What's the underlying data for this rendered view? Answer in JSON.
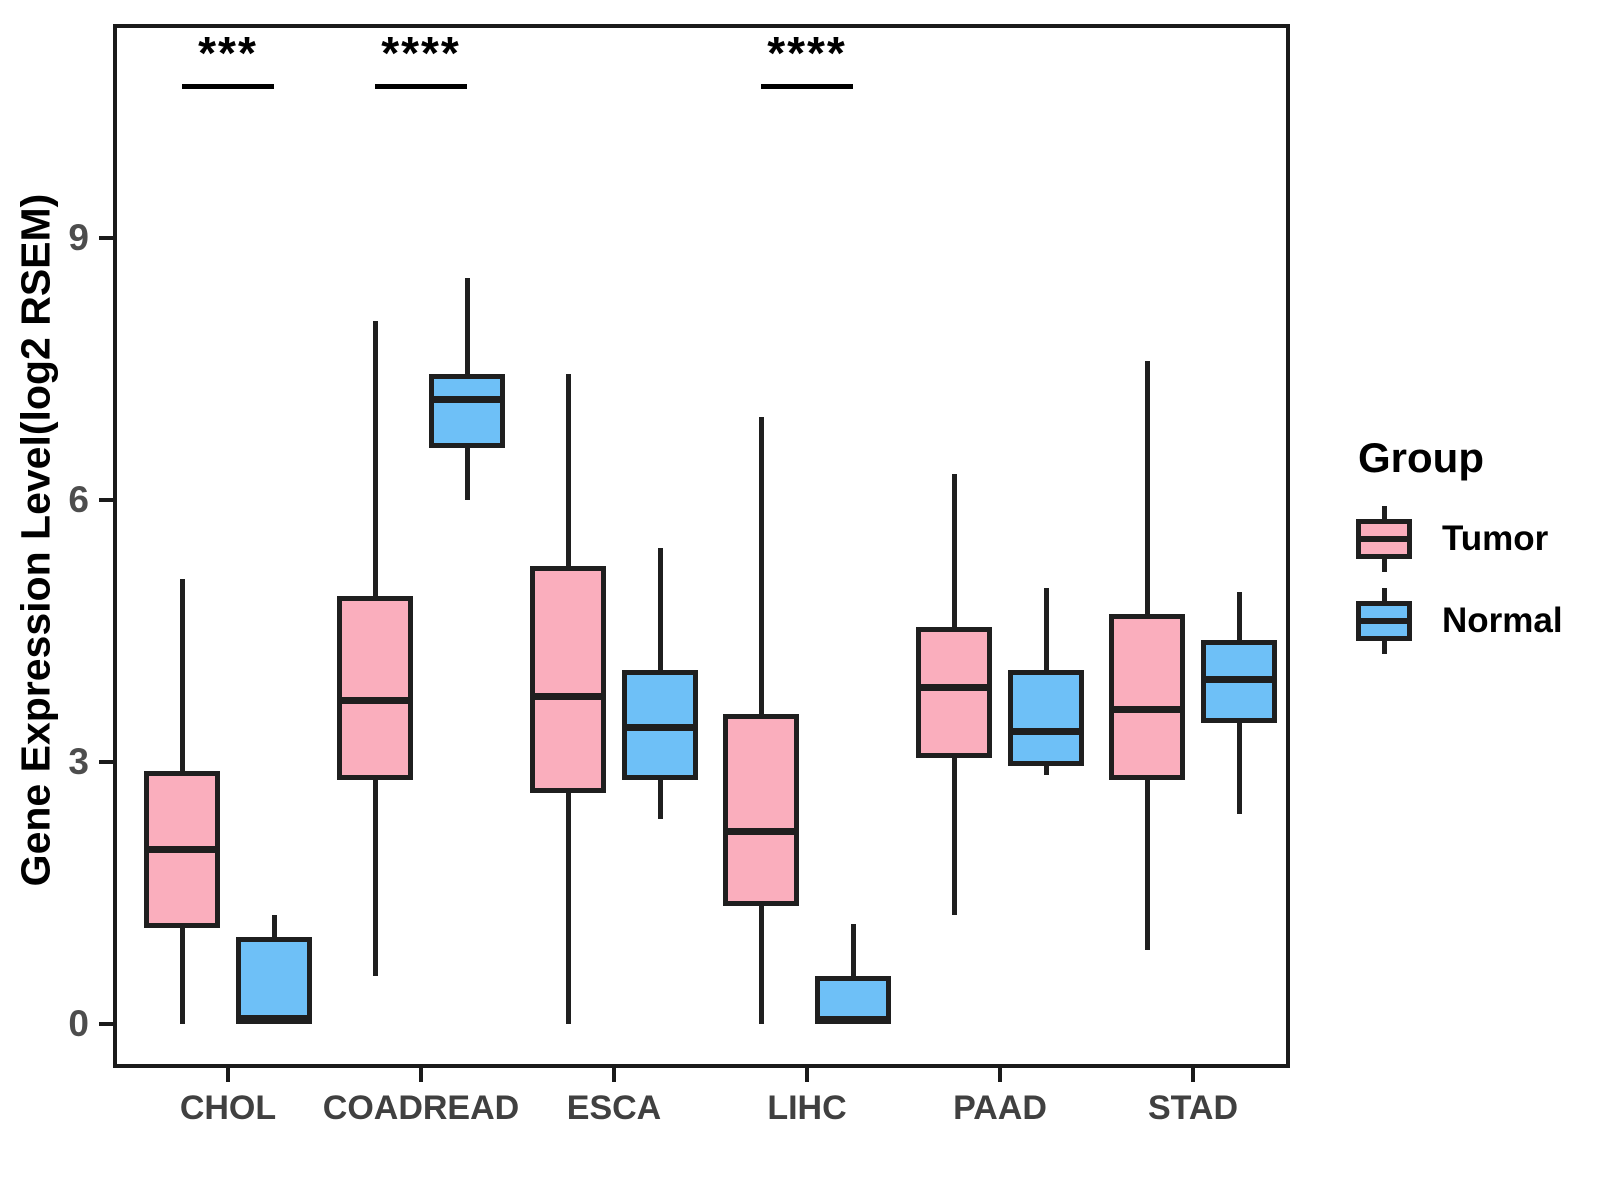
{
  "chart_data": {
    "type": "boxplot",
    "title": "",
    "xlabel": "",
    "ylabel": "Gene Expression Level(log2 RSEM)",
    "categories": [
      "CHOL",
      "COADREAD",
      "ESCA",
      "LIHC",
      "PAAD",
      "STAD"
    ],
    "y_ticks": [
      0,
      3,
      6,
      9
    ],
    "ylim": [
      -0.5,
      11.5
    ],
    "grid": false,
    "legend_position": "right",
    "legend": {
      "title": "Group"
    },
    "colors": {
      "tumor_fill": "#FAAEBD",
      "normal_fill": "#6EC0F7",
      "box_border": "#1f1f1f",
      "axis_frame": "#1a1a1a",
      "tick_text": "#4d4d4d"
    },
    "series": [
      {
        "name": "Tumor",
        "color": "#FAAEBD",
        "boxes": [
          {
            "category": "CHOL",
            "min": 0,
            "q1": 1.1,
            "median": 2.0,
            "q3": 2.9,
            "max": 5.1
          },
          {
            "category": "COADREAD",
            "min": 0.55,
            "q1": 2.8,
            "median": 3.7,
            "q3": 4.9,
            "max": 8.05
          },
          {
            "category": "ESCA",
            "min": 0,
            "q1": 2.65,
            "median": 3.75,
            "q3": 5.25,
            "max": 7.45
          },
          {
            "category": "LIHC",
            "min": 0,
            "q1": 1.35,
            "median": 2.2,
            "q3": 3.55,
            "max": 6.95
          },
          {
            "category": "PAAD",
            "min": 1.25,
            "q1": 3.05,
            "median": 3.85,
            "q3": 4.55,
            "max": 6.3
          },
          {
            "category": "STAD",
            "min": 0.85,
            "q1": 2.8,
            "median": 3.6,
            "q3": 4.7,
            "max": 7.6
          }
        ]
      },
      {
        "name": "Normal",
        "color": "#6EC0F7",
        "boxes": [
          {
            "category": "CHOL",
            "min": 0,
            "q1": 0,
            "median": 0.06,
            "q3": 1.0,
            "max": 1.25
          },
          {
            "category": "COADREAD",
            "min": 6.0,
            "q1": 6.6,
            "median": 7.15,
            "q3": 7.45,
            "max": 8.55
          },
          {
            "category": "ESCA",
            "min": 2.35,
            "q1": 2.8,
            "median": 3.4,
            "q3": 4.05,
            "max": 5.45
          },
          {
            "category": "LIHC",
            "min": 0,
            "q1": 0,
            "median": 0.05,
            "q3": 0.55,
            "max": 1.15
          },
          {
            "category": "PAAD",
            "min": 2.85,
            "q1": 2.95,
            "median": 3.35,
            "q3": 4.05,
            "max": 5.0
          },
          {
            "category": "STAD",
            "min": 2.4,
            "q1": 3.45,
            "median": 3.95,
            "q3": 4.4,
            "max": 4.95
          }
        ]
      }
    ],
    "annotations": [
      {
        "category": "CHOL",
        "label": "***"
      },
      {
        "category": "COADREAD",
        "label": "****"
      },
      {
        "category": "LIHC",
        "label": "****"
      }
    ]
  }
}
